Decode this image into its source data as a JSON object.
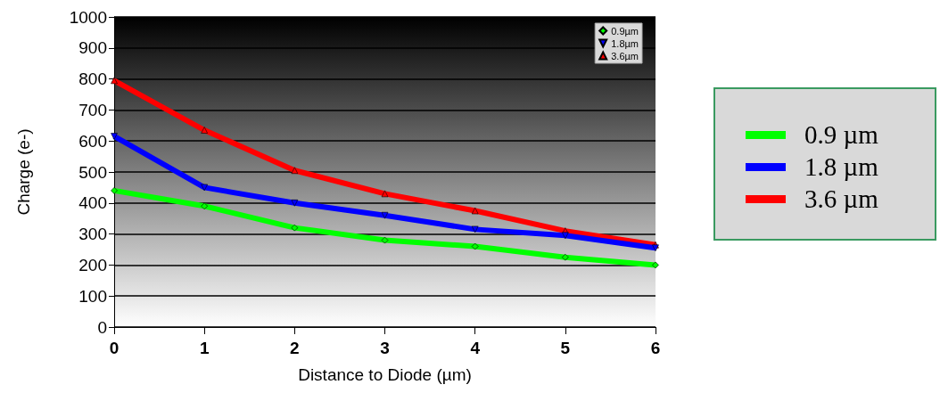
{
  "chart_data": {
    "type": "line",
    "xlabel": "Distance to Diode (µm)",
    "ylabel": "Charge (e-)",
    "x": [
      0,
      1,
      2,
      3,
      4,
      5,
      6
    ],
    "series": [
      {
        "name": "0.9µm",
        "color": "#00ff00",
        "marker": "diamond",
        "values": [
          440,
          390,
          320,
          280,
          260,
          225,
          200
        ]
      },
      {
        "name": "1.8µm",
        "color": "#0000ff",
        "marker": "triangle-down",
        "values": [
          615,
          450,
          400,
          360,
          315,
          295,
          255
        ]
      },
      {
        "name": "3.6µm",
        "color": "#ff0000",
        "marker": "triangle",
        "values": [
          795,
          635,
          505,
          430,
          375,
          310,
          265
        ]
      }
    ],
    "xlim": [
      0,
      6
    ],
    "xticks": [
      0,
      1,
      2,
      3,
      4,
      5,
      6
    ],
    "ylim": [
      0,
      1000
    ],
    "yticks": [
      0,
      100,
      200,
      300,
      400,
      500,
      600,
      700,
      800,
      900,
      1000
    ],
    "grid": "y",
    "legend": "top right",
    "annotations": [
      "0.9 µm",
      "1.8 µm",
      "3.6 µm"
    ]
  }
}
